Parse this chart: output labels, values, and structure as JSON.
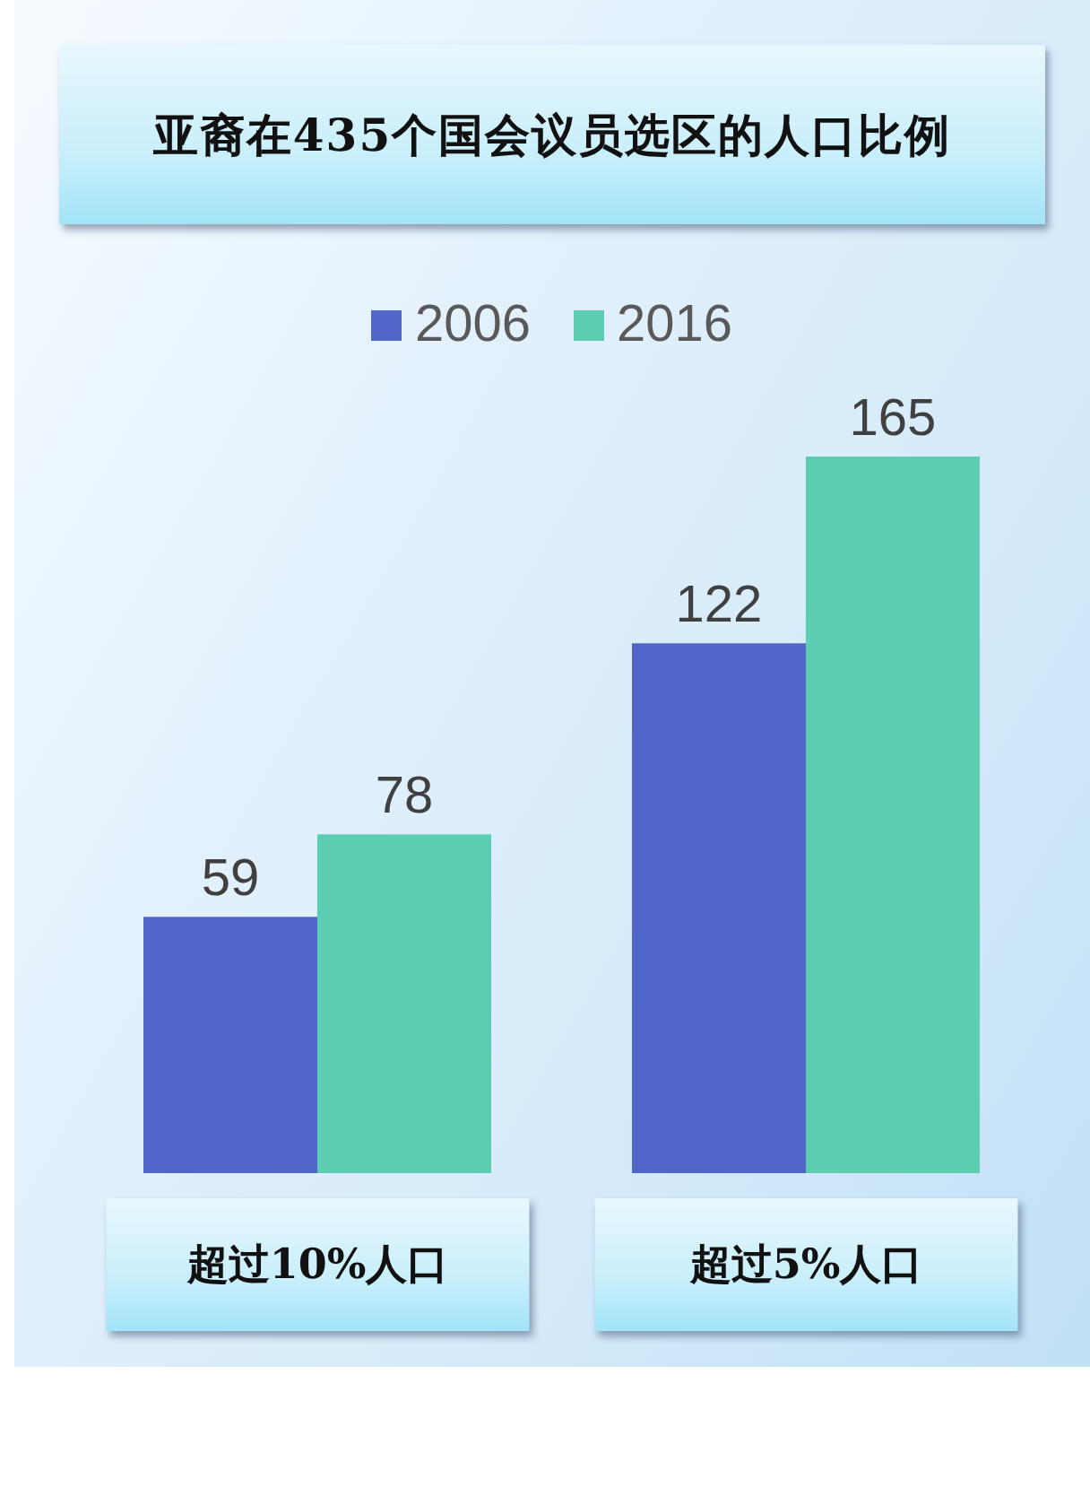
{
  "chart_data": {
    "type": "bar",
    "title": "亚裔在435个国会议员选区的人口比例",
    "categories": [
      "超过10%人口",
      "超过5%人口"
    ],
    "series": [
      {
        "name": "2006",
        "color": "#5066c8",
        "values": [
          59,
          122
        ]
      },
      {
        "name": "2016",
        "color": "#5ccdb0",
        "values": [
          78,
          165
        ]
      }
    ],
    "data_labels": true,
    "legend": "top",
    "tick_labels": "x"
  }
}
